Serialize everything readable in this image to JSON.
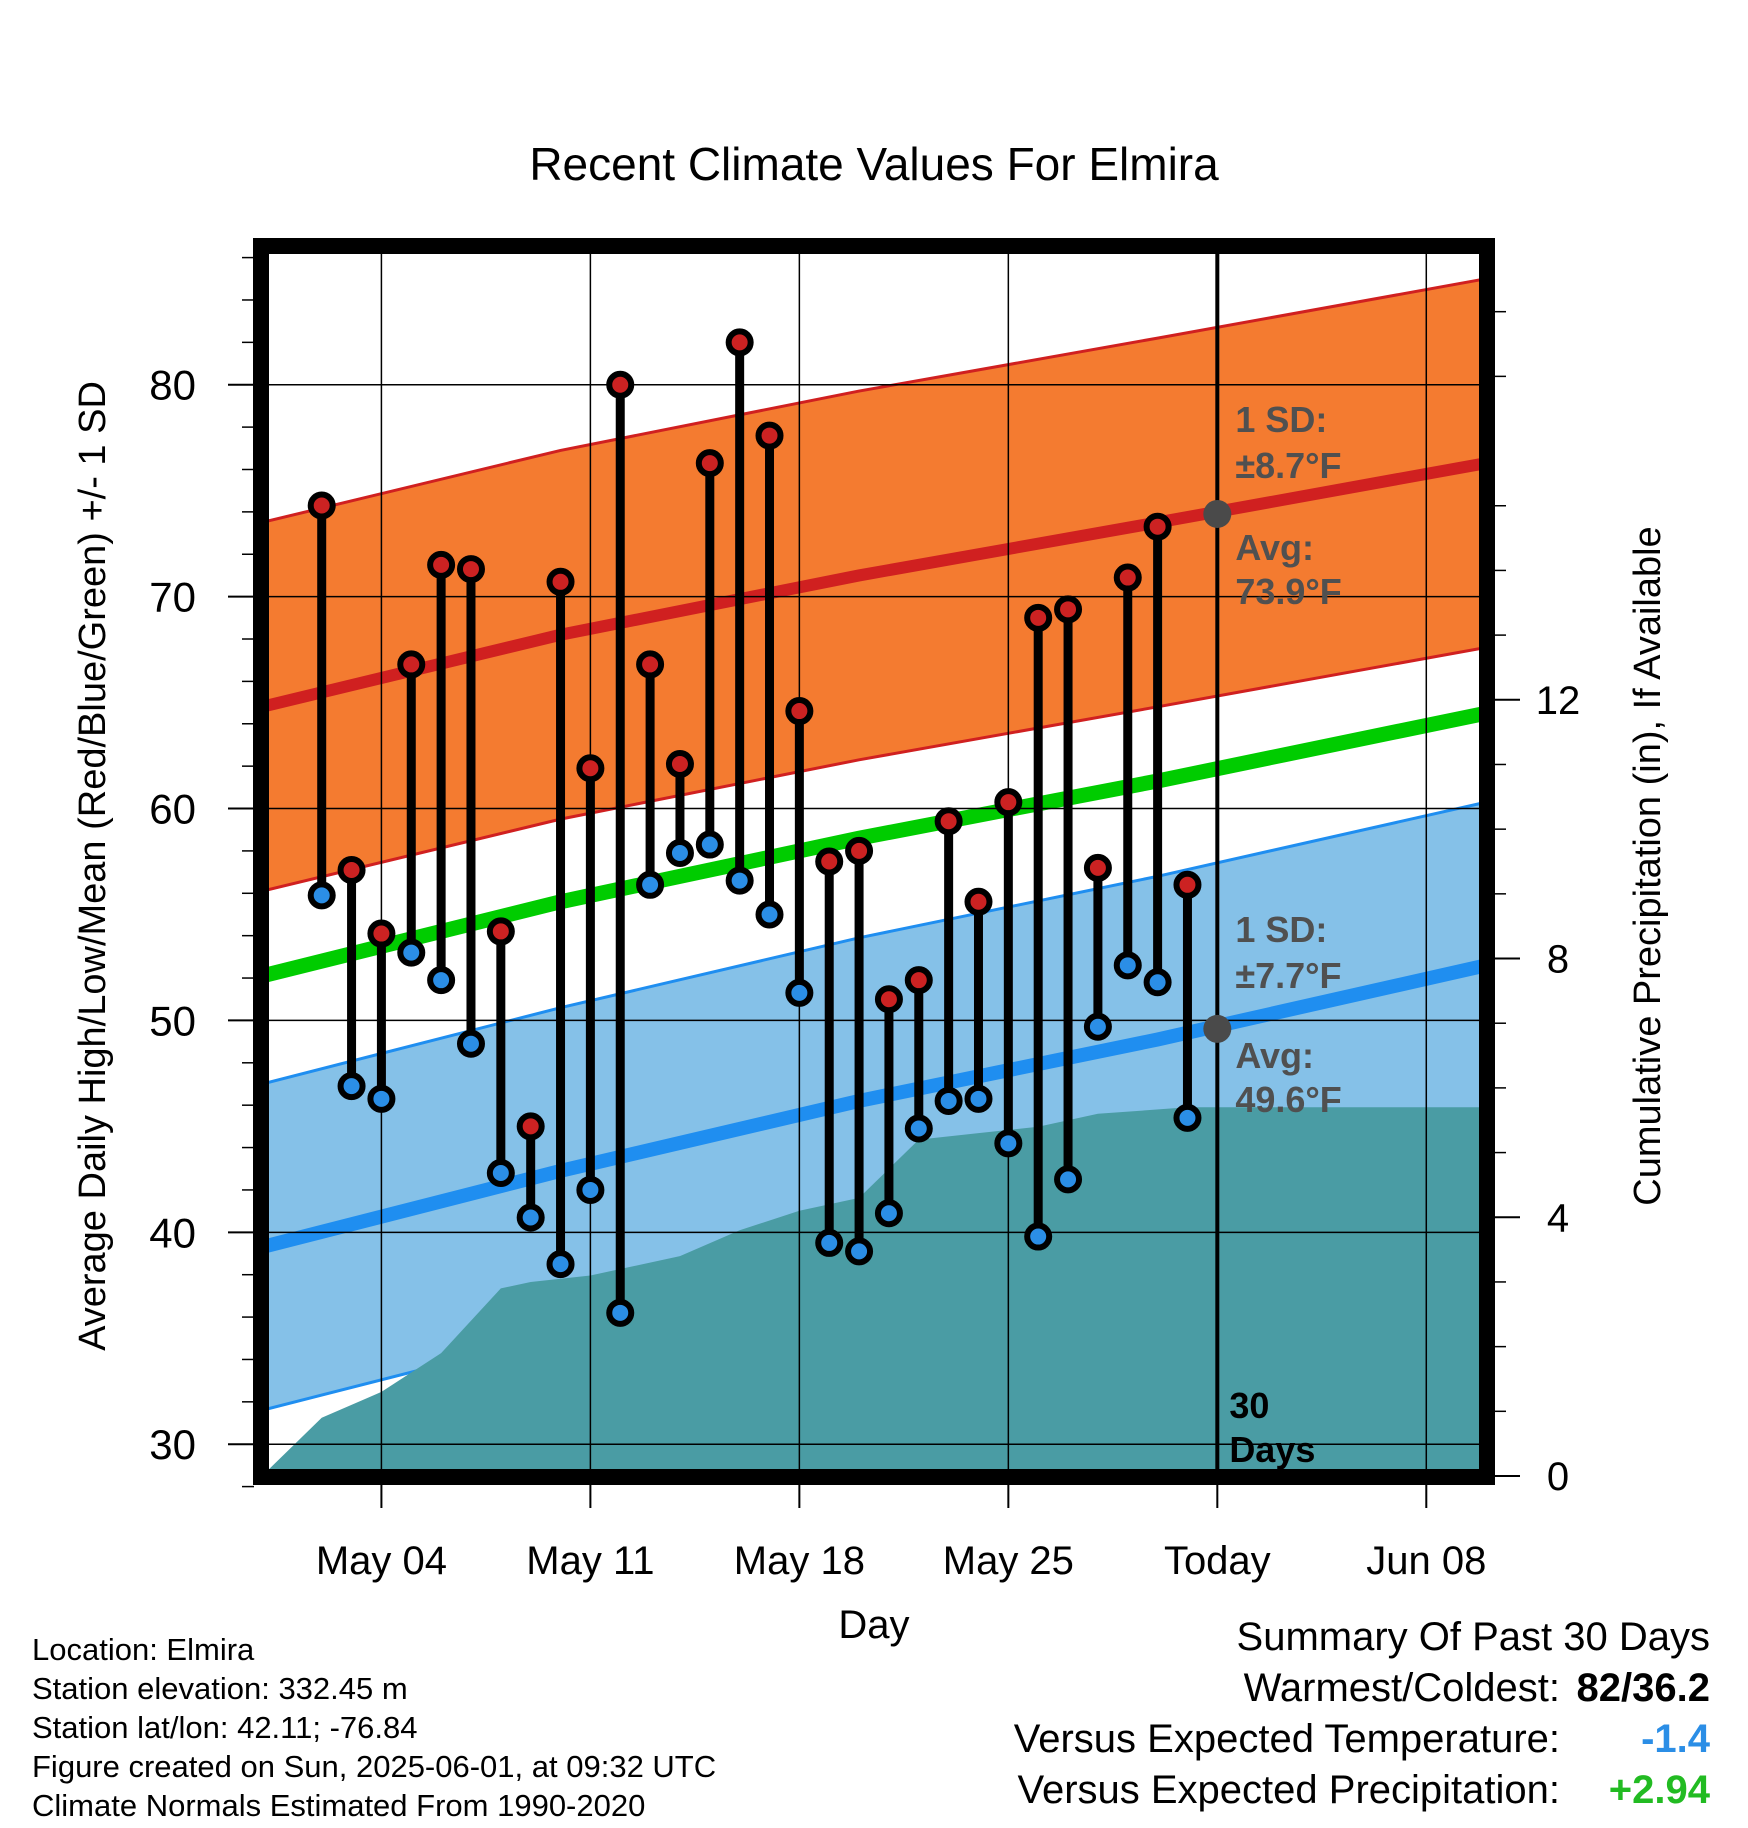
{
  "chart_data": {
    "type": "line",
    "title": "Recent Climate Values For Elmira",
    "xlabel": "Day",
    "ylabel": "Average Daily High/Low/Mean (Red/Blue/Green) +/- 1 SD",
    "ylabel_right": "Cumulative Precipitation (in), If Available",
    "x_tick_labels": [
      "May 04",
      "May 11",
      "May 18",
      "May 25",
      "Today",
      "Jun 08"
    ],
    "y_ticks": [
      30,
      40,
      50,
      60,
      70,
      80
    ],
    "y_right_ticks": [
      0,
      4,
      8,
      12
    ],
    "ylim": [
      28.5,
      86.5
    ],
    "y_right_lim": [
      0,
      19
    ],
    "xlim": [
      "2025-04-30",
      "2025-06-10"
    ],
    "grid": true,
    "today": "2025-06-01",
    "days": [
      "2025-05-02",
      "2025-05-03",
      "2025-05-04",
      "2025-05-05",
      "2025-05-06",
      "2025-05-07",
      "2025-05-08",
      "2025-05-09",
      "2025-05-10",
      "2025-05-11",
      "2025-05-12",
      "2025-05-13",
      "2025-05-14",
      "2025-05-15",
      "2025-05-16",
      "2025-05-17",
      "2025-05-18",
      "2025-05-19",
      "2025-05-20",
      "2025-05-21",
      "2025-05-22",
      "2025-05-23",
      "2025-05-24",
      "2025-05-25",
      "2025-05-26",
      "2025-05-27",
      "2025-05-28",
      "2025-05-29",
      "2025-05-30",
      "2025-05-31"
    ],
    "series": [
      {
        "name": "High",
        "color": "#cc2222",
        "values": [
          74.3,
          57.1,
          54.1,
          66.8,
          71.5,
          71.3,
          54.2,
          45.0,
          70.7,
          61.9,
          80.0,
          66.8,
          62.1,
          76.3,
          82.0,
          77.6,
          64.6,
          57.5,
          58.0,
          51.0,
          51.9,
          59.4,
          55.6,
          60.3,
          69.0,
          69.4,
          57.2,
          70.9,
          73.3,
          56.4
        ]
      },
      {
        "name": "Low",
        "color": "#2b8ee6",
        "values": [
          55.9,
          46.9,
          46.3,
          53.2,
          51.9,
          48.9,
          42.8,
          40.7,
          38.5,
          42.0,
          36.2,
          56.4,
          57.9,
          58.3,
          56.6,
          55.0,
          51.3,
          39.5,
          39.1,
          40.9,
          44.9,
          46.2,
          46.3,
          44.2,
          39.8,
          42.5,
          49.7,
          52.6,
          51.8,
          45.4
        ]
      }
    ],
    "normals": {
      "x": [
        "2025-04-30",
        "2025-05-10",
        "2025-05-20",
        "2025-05-30",
        "2025-06-10"
      ],
      "high_avg": [
        64.8,
        68.2,
        71.0,
        73.5,
        76.3
      ],
      "high_sd": 8.7,
      "low_avg": [
        39.3,
        42.9,
        46.2,
        49.1,
        52.6
      ],
      "low_sd": 7.7,
      "mean_avg": [
        52.1,
        55.6,
        58.6,
        61.3,
        64.5
      ]
    },
    "precipitation": {
      "x": [
        "2025-04-30",
        "2025-05-02",
        "2025-05-04",
        "2025-05-06",
        "2025-05-08",
        "2025-05-09",
        "2025-05-11",
        "2025-05-12",
        "2025-05-14",
        "2025-05-16",
        "2025-05-18",
        "2025-05-20",
        "2025-05-22",
        "2025-05-24",
        "2025-05-26",
        "2025-05-28",
        "2025-05-31",
        "2025-06-10"
      ],
      "values": [
        0,
        0.9,
        1.3,
        1.9,
        2.9,
        3.0,
        3.1,
        3.2,
        3.4,
        3.8,
        4.1,
        4.3,
        5.2,
        5.3,
        5.4,
        5.6,
        5.7,
        5.7
      ]
    },
    "annotations": {
      "high_sd_label": "1 SD:",
      "high_sd_value": "±8.7°F",
      "high_avg_label": "Avg:",
      "high_avg_value": "73.9°F",
      "low_sd_label": "1 SD:",
      "low_sd_value": "±7.7°F",
      "low_avg_label": "Avg:",
      "low_avg_value": "49.6°F",
      "days_line1": "30",
      "days_line2": "Days"
    },
    "colors": {
      "high_band": "#f47b30",
      "high_line": "#d02020",
      "low_band": "#85c1e8",
      "low_line": "#1f8ef0",
      "mean_line": "#00cc00",
      "precip": "#4a9ca4",
      "annotation": "#505050"
    }
  },
  "footer": {
    "location": "Location: Elmira",
    "elevation": "Station elevation: 332.45 m",
    "latlon": "Station lat/lon: 42.11; -76.84",
    "created": "Figure created on Sun, 2025-06-01, at 09:32 UTC",
    "normals": "Climate Normals Estimated From 1990-2020"
  },
  "summary": {
    "title": "Summary Of Past 30 Days",
    "warmest_label": "Warmest/Coldest:",
    "warmest_value": "82/36.2",
    "temp_label": "Versus Expected Temperature:",
    "temp_value": "-1.4",
    "temp_color": "#2b8ee6",
    "precip_label": "Versus Expected Precipitation:",
    "precip_value": "+2.94",
    "precip_color": "#22bb22"
  }
}
